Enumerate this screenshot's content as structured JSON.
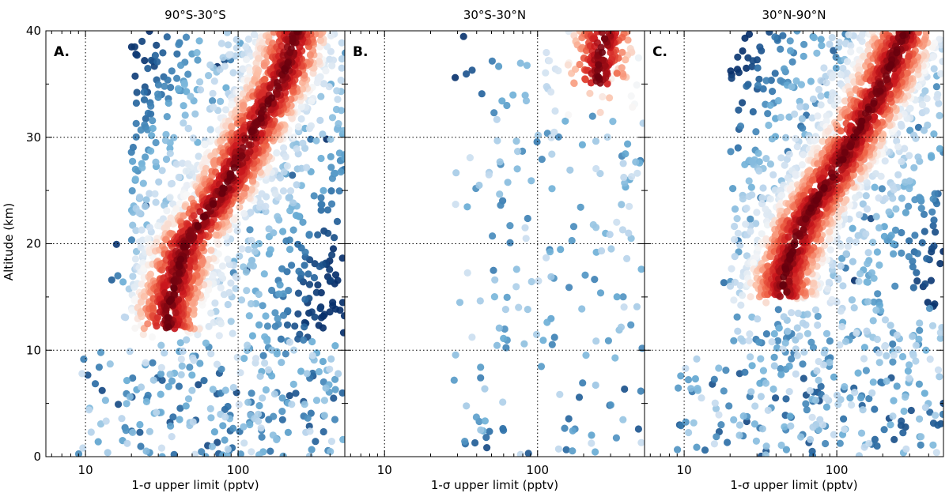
{
  "chart_data": {
    "type": "scatter",
    "ylabel": "Altitude (km)",
    "xlabel": "1-σ upper limit (pptv)",
    "ylim": [
      0,
      40
    ],
    "xlim_log": [
      5.5,
      500
    ],
    "x_scale": "log",
    "y_ticks": [
      "0",
      "10",
      "20",
      "30",
      "40"
    ],
    "x_ticks": [
      "10",
      "100"
    ],
    "colormap": [
      "#08306b",
      "#2c6ea6",
      "#6aaed6",
      "#c6dbef",
      "#f7f7f7",
      "#fcbba1",
      "#ef6548",
      "#cb181d",
      "#67000d"
    ],
    "panels": [
      {
        "label": "A.",
        "title": "90°S-30°S",
        "band": [
          {
            "alt": 14,
            "x": 35
          },
          {
            "alt": 20,
            "x": 45
          },
          {
            "alt": 25,
            "x": 80
          },
          {
            "alt": 30,
            "x": 120
          },
          {
            "alt": 36,
            "x": 200
          },
          {
            "alt": 40,
            "x": 240
          }
        ],
        "density": "high"
      },
      {
        "label": "B.",
        "title": "30°S-30°N",
        "band": [
          {
            "alt": 35,
            "x": 250
          },
          {
            "alt": 38,
            "x": 260
          },
          {
            "alt": 40,
            "x": 280
          }
        ],
        "density": "low"
      },
      {
        "label": "C.",
        "title": "30°N-90°N",
        "band": [
          {
            "alt": 17,
            "x": 45
          },
          {
            "alt": 22,
            "x": 60
          },
          {
            "alt": 28,
            "x": 110
          },
          {
            "alt": 35,
            "x": 200
          },
          {
            "alt": 40,
            "x": 280
          }
        ],
        "density": "high"
      }
    ]
  }
}
